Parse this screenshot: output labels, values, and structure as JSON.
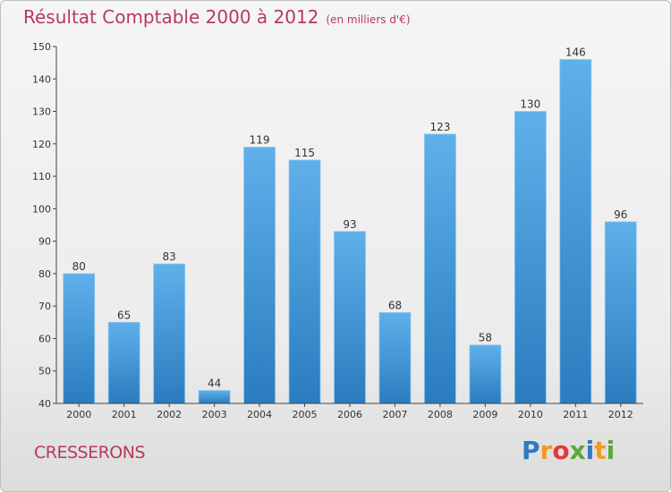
{
  "title": "Résultat Comptable 2000 à 2012",
  "subtitle": "(en milliers d'€)",
  "town": "CRESSERONS",
  "logo": {
    "letters": [
      "P",
      "r",
      "o",
      "x",
      "i",
      "t",
      "i"
    ],
    "colors": [
      "#2f79c4",
      "#f39a1e",
      "#e23a3a",
      "#5aa83a",
      "#2f79c4",
      "#f39a1e",
      "#5aa83a"
    ]
  },
  "colors": {
    "bar_top": "#5fb0ea",
    "bar_bottom": "#2a7cbf",
    "text": "#b83a5a",
    "axis": "#444444"
  },
  "chart_data": {
    "type": "bar",
    "title": "Résultat Comptable 2000 à 2012",
    "ylabel": "",
    "xlabel": "",
    "categories": [
      "2000",
      "2001",
      "2002",
      "2003",
      "2004",
      "2005",
      "2006",
      "2007",
      "2008",
      "2009",
      "2010",
      "2011",
      "2012"
    ],
    "values": [
      80,
      65,
      83,
      44,
      119,
      115,
      93,
      68,
      123,
      58,
      130,
      146,
      96
    ],
    "ylim": [
      40,
      150
    ],
    "yticks": [
      40,
      50,
      60,
      70,
      80,
      90,
      100,
      110,
      120,
      130,
      140,
      150
    ],
    "grid": false,
    "data_labels": true
  }
}
